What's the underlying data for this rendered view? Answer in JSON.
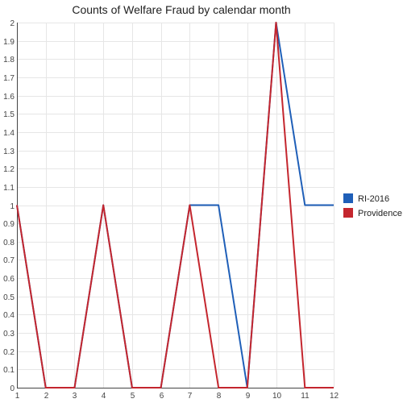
{
  "chart_data": {
    "type": "line",
    "title": "Counts of Welfare Fraud by calendar month",
    "xlabel": "",
    "ylabel": "",
    "x": [
      1,
      2,
      3,
      4,
      5,
      6,
      7,
      8,
      9,
      10,
      11,
      12
    ],
    "xlim": [
      1,
      12
    ],
    "ylim": [
      0,
      2
    ],
    "yticks": [
      "0",
      "0.1",
      "0.2",
      "0.3",
      "0.4",
      "0.5",
      "0.6",
      "0.7",
      "0.8",
      "0.9",
      "1",
      "1.1",
      "1.2",
      "1.3",
      "1.4",
      "1.5",
      "1.6",
      "1.7",
      "1.8",
      "1.9",
      "2"
    ],
    "xticks": [
      "1",
      "2",
      "3",
      "4",
      "5",
      "6",
      "7",
      "8",
      "9",
      "10",
      "11",
      "12"
    ],
    "grid": true,
    "legend": "right",
    "series": [
      {
        "name": "RI-2016",
        "color": "#1f5fb8",
        "values": [
          1,
          0,
          0,
          1,
          0,
          0,
          1,
          1,
          0,
          2,
          1,
          1
        ]
      },
      {
        "name": "Providence",
        "color": "#c4262e",
        "values": [
          1,
          0,
          0,
          1,
          0,
          0,
          1,
          0,
          0,
          2,
          0,
          0
        ]
      }
    ]
  }
}
